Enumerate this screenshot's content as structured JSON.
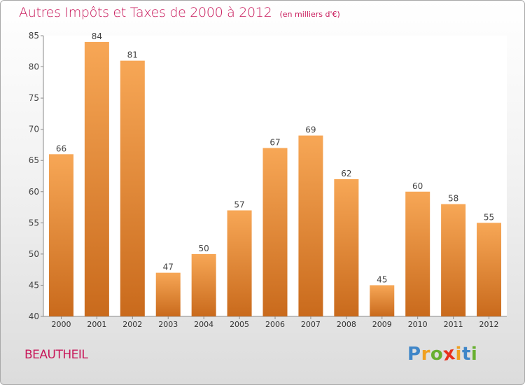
{
  "chart_data": {
    "type": "bar",
    "title": "Autres Impôts et Taxes de 2000 à 2012",
    "unit_note": "(en milliers d'€)",
    "categories": [
      "2000",
      "2001",
      "2002",
      "2003",
      "2004",
      "2005",
      "2006",
      "2007",
      "2008",
      "2009",
      "2010",
      "2011",
      "2012"
    ],
    "values": [
      66,
      84,
      81,
      47,
      50,
      57,
      67,
      69,
      62,
      45,
      60,
      58,
      55
    ],
    "ylim": [
      40,
      85
    ],
    "yticks": [
      40,
      45,
      50,
      55,
      60,
      65,
      70,
      75,
      80,
      85
    ],
    "xlabel": "",
    "ylabel": "",
    "grid": false,
    "legend": "none",
    "bar_color": "#f0923a",
    "title_color": "#c8185a"
  },
  "footer": {
    "town": "BEAUTHEIL",
    "logo_letters": [
      "P",
      "r",
      "o",
      "x",
      "i",
      "t",
      "i"
    ],
    "logo_colors": [
      "#3f86c8",
      "#f0a020",
      "#68b030",
      "#e8301c",
      "#f0a020",
      "#3f86c8",
      "#68b030"
    ]
  }
}
